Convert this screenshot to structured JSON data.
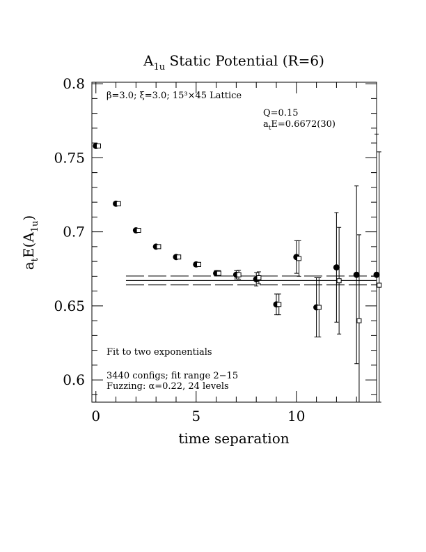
{
  "chart_data": {
    "type": "scatter",
    "title": "A",
    "title_sub": "1u",
    "title_rest": " Static Potential (R=6)",
    "xlabel": "time separation",
    "ylabel_prefix": "a",
    "ylabel_sub1": "t",
    "ylabel_mid": "E(A",
    "ylabel_sub2": "1u",
    "ylabel_end": ")",
    "xlim": [
      -0.2,
      14.0
    ],
    "ylim": [
      0.585,
      0.801
    ],
    "xticks": [
      0,
      5,
      10
    ],
    "xtick_labels": [
      "0",
      "5",
      "10"
    ],
    "yticks": [
      0.6,
      0.65,
      0.7,
      0.75,
      0.8
    ],
    "ytick_labels": [
      "0.6",
      "0.65",
      "0.7",
      "0.75",
      "0.8"
    ],
    "annotations": {
      "lattice": "β=3.0; ξ=3.0; 15³×45 Lattice",
      "q": "Q=0.15",
      "energy_prefix": "a",
      "energy_sub": "t",
      "energy_rest": "E=0.6672(30)",
      "fit_type": "Fit to two exponentials",
      "configs": "3440 configs; fit range 2−15",
      "fuzzing": "Fuzzing: α=0.22, 24 levels"
    },
    "fit": {
      "central": 0.6672,
      "error": 0.003,
      "t_min": 1.5,
      "t_max": 14.0
    },
    "series": [
      {
        "marker": "filled-circle",
        "points": [
          {
            "x": 0,
            "y": 0.758,
            "err": 0.0008
          },
          {
            "x": 1,
            "y": 0.719,
            "err": 0.0008
          },
          {
            "x": 2,
            "y": 0.701,
            "err": 0.001
          },
          {
            "x": 3,
            "y": 0.69,
            "err": 0.001
          },
          {
            "x": 4,
            "y": 0.683,
            "err": 0.0012
          },
          {
            "x": 5,
            "y": 0.678,
            "err": 0.0014
          },
          {
            "x": 6,
            "y": 0.672,
            "err": 0.0018
          },
          {
            "x": 7,
            "y": 0.671,
            "err": 0.0028
          },
          {
            "x": 8,
            "y": 0.668,
            "err": 0.0045
          },
          {
            "x": 9,
            "y": 0.651,
            "err": 0.007
          },
          {
            "x": 10,
            "y": 0.683,
            "err": 0.011
          },
          {
            "x": 11,
            "y": 0.649,
            "err": 0.02
          },
          {
            "x": 12,
            "y": 0.676,
            "err": 0.037
          },
          {
            "x": 13,
            "y": 0.671,
            "err": 0.06
          },
          {
            "x": 14,
            "y": 0.671,
            "err": 0.095
          }
        ]
      },
      {
        "marker": "open-square",
        "points": [
          {
            "x": 0.13,
            "y": 0.758,
            "err": 0.0008
          },
          {
            "x": 1.13,
            "y": 0.719,
            "err": 0.0008
          },
          {
            "x": 2.13,
            "y": 0.701,
            "err": 0.001
          },
          {
            "x": 3.13,
            "y": 0.69,
            "err": 0.001
          },
          {
            "x": 4.13,
            "y": 0.683,
            "err": 0.0012
          },
          {
            "x": 5.13,
            "y": 0.678,
            "err": 0.0014
          },
          {
            "x": 6.13,
            "y": 0.672,
            "err": 0.0018
          },
          {
            "x": 7.13,
            "y": 0.671,
            "err": 0.003
          },
          {
            "x": 8.13,
            "y": 0.669,
            "err": 0.004
          },
          {
            "x": 9.13,
            "y": 0.651,
            "err": 0.007
          },
          {
            "x": 10.13,
            "y": 0.682,
            "err": 0.012
          },
          {
            "x": 11.13,
            "y": 0.649,
            "err": 0.02
          },
          {
            "x": 12.13,
            "y": 0.667,
            "err": 0.036
          },
          {
            "x": 13.13,
            "y": 0.64,
            "err": 0.058
          },
          {
            "x": 14.13,
            "y": 0.664,
            "err": 0.09
          }
        ]
      }
    ]
  }
}
